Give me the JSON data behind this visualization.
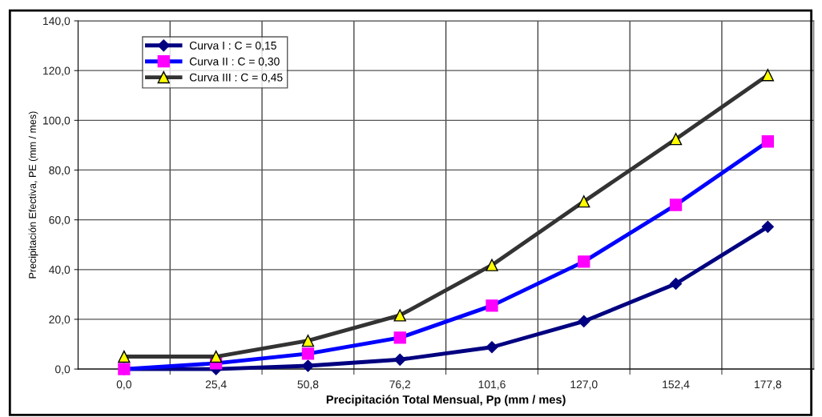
{
  "chart_data": {
    "type": "line",
    "xlabel": "Precipitación Total Mensual, Pp (mm / mes)",
    "ylabel": "Precipitación Efectiva, PE (mm / mes)",
    "categories": [
      "0,0",
      "25,4",
      "50,8",
      "76,2",
      "101,6",
      "127,0",
      "152,4",
      "177,8"
    ],
    "series": [
      {
        "name": "Curva I : C = 0,15",
        "color": "#000080",
        "marker": "diamond",
        "values": [
          0.0,
          0.0,
          1.3,
          3.8,
          8.8,
          19.2,
          34.3,
          57.2
        ]
      },
      {
        "name": "Curva II : C = 0,30",
        "color": "#0000ff",
        "marker": "square",
        "values": [
          0.0,
          2.3,
          6.2,
          12.6,
          25.5,
          43.2,
          66.0,
          91.5
        ]
      },
      {
        "name": "Curva III : C = 0,45",
        "color": "#333333",
        "marker": "triangle",
        "values": [
          5.0,
          5.0,
          11.4,
          21.6,
          41.8,
          67.4,
          92.5,
          118.2
        ]
      }
    ],
    "ylim": [
      0,
      140
    ],
    "yticks": [
      {
        "value": 0,
        "label": "0,0"
      },
      {
        "value": 20,
        "label": "20,0"
      },
      {
        "value": 40,
        "label": "40,0"
      },
      {
        "value": 60,
        "label": "60,0"
      },
      {
        "value": 80,
        "label": "80,0"
      },
      {
        "value": 100,
        "label": "100,0"
      },
      {
        "value": 120,
        "label": "120,0"
      },
      {
        "value": 140,
        "label": "140,0"
      }
    ],
    "grid": true,
    "legend": "top left"
  }
}
